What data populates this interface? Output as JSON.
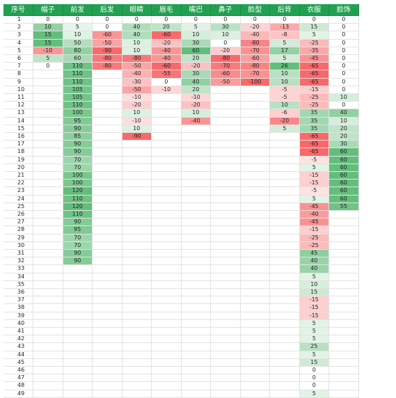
{
  "table": {
    "headers": [
      "序号",
      "帽子",
      "前发",
      "后发",
      "眼睛",
      "眉毛",
      "嘴巴",
      "鼻子",
      "脸型",
      "后背",
      "衣服",
      "脸饰"
    ],
    "positive_color": "#63be7b",
    "negative_color": "#f8696b",
    "rows": [
      [
        1,
        0,
        0,
        0,
        0,
        0,
        0,
        0,
        0,
        0,
        0,
        0
      ],
      [
        2,
        10,
        5,
        0,
        40,
        20,
        5,
        30,
        -20,
        -13,
        15,
        0
      ],
      [
        3,
        15,
        10,
        -60,
        40,
        -60,
        10,
        10,
        -40,
        -8,
        5,
        0
      ],
      [
        4,
        15,
        50,
        -50,
        10,
        -20,
        30,
        0,
        -80,
        5,
        -25,
        0
      ],
      [
        5,
        -10,
        80,
        -90,
        10,
        -40,
        60,
        -20,
        -70,
        17,
        -35,
        0
      ],
      [
        6,
        5,
        60,
        -80,
        -80,
        -40,
        20,
        -80,
        -60,
        5,
        -45,
        0
      ],
      [
        7,
        0,
        110,
        -80,
        -50,
        -60,
        -20,
        -70,
        -80,
        26,
        -65,
        0
      ],
      [
        8,
        null,
        110,
        null,
        -40,
        -55,
        30,
        -60,
        -70,
        10,
        -65,
        0
      ],
      [
        9,
        null,
        110,
        null,
        -30,
        0,
        40,
        -50,
        -100,
        10,
        -65,
        0
      ],
      [
        10,
        null,
        105,
        null,
        -50,
        -10,
        20,
        null,
        null,
        -5,
        -15,
        0
      ],
      [
        11,
        null,
        105,
        null,
        -10,
        null,
        -10,
        null,
        null,
        -5,
        -25,
        10
      ],
      [
        12,
        null,
        110,
        null,
        -20,
        null,
        -20,
        null,
        null,
        10,
        -25,
        0
      ],
      [
        13,
        null,
        100,
        null,
        10,
        null,
        10,
        null,
        null,
        -6,
        35,
        40
      ],
      [
        14,
        null,
        95,
        null,
        -10,
        null,
        -40,
        null,
        null,
        -20,
        35,
        10
      ],
      [
        15,
        null,
        90,
        null,
        10,
        null,
        null,
        null,
        null,
        5,
        35,
        20
      ],
      [
        16,
        null,
        85,
        null,
        -90,
        null,
        null,
        null,
        null,
        null,
        -65,
        20
      ],
      [
        17,
        null,
        90,
        null,
        null,
        null,
        null,
        null,
        null,
        null,
        -65,
        30
      ],
      [
        18,
        null,
        90,
        null,
        null,
        null,
        null,
        null,
        null,
        null,
        -65,
        60
      ],
      [
        19,
        null,
        70,
        null,
        null,
        null,
        null,
        null,
        null,
        null,
        -5,
        60
      ],
      [
        20,
        null,
        70,
        null,
        null,
        null,
        null,
        null,
        null,
        null,
        5,
        60
      ],
      [
        21,
        null,
        100,
        null,
        null,
        null,
        null,
        null,
        null,
        null,
        -15,
        60
      ],
      [
        22,
        null,
        100,
        null,
        null,
        null,
        null,
        null,
        null,
        null,
        -15,
        60
      ],
      [
        23,
        null,
        120,
        null,
        null,
        null,
        null,
        null,
        null,
        null,
        -5,
        60
      ],
      [
        24,
        null,
        110,
        null,
        null,
        null,
        null,
        null,
        null,
        null,
        5,
        60
      ],
      [
        25,
        null,
        120,
        null,
        null,
        null,
        null,
        null,
        null,
        null,
        -45,
        55
      ],
      [
        26,
        null,
        110,
        null,
        null,
        null,
        null,
        null,
        null,
        null,
        -40,
        null
      ],
      [
        27,
        null,
        90,
        null,
        null,
        null,
        null,
        null,
        null,
        null,
        -45,
        null
      ],
      [
        28,
        null,
        95,
        null,
        null,
        null,
        null,
        null,
        null,
        null,
        -15,
        null
      ],
      [
        29,
        null,
        70,
        null,
        null,
        null,
        null,
        null,
        null,
        null,
        -25,
        null
      ],
      [
        30,
        null,
        70,
        null,
        null,
        null,
        null,
        null,
        null,
        null,
        -25,
        null
      ],
      [
        31,
        null,
        90,
        null,
        null,
        null,
        null,
        null,
        null,
        null,
        45,
        null
      ],
      [
        32,
        null,
        90,
        null,
        null,
        null,
        null,
        null,
        null,
        null,
        40,
        null
      ],
      [
        33,
        null,
        null,
        null,
        null,
        null,
        null,
        null,
        null,
        null,
        40,
        null
      ],
      [
        34,
        null,
        null,
        null,
        null,
        null,
        null,
        null,
        null,
        null,
        5,
        null
      ],
      [
        35,
        null,
        null,
        null,
        null,
        null,
        null,
        null,
        null,
        null,
        10,
        null
      ],
      [
        36,
        null,
        null,
        null,
        null,
        null,
        null,
        null,
        null,
        null,
        15,
        null
      ],
      [
        37,
        null,
        null,
        null,
        null,
        null,
        null,
        null,
        null,
        null,
        -15,
        null
      ],
      [
        38,
        null,
        null,
        null,
        null,
        null,
        null,
        null,
        null,
        null,
        -15,
        null
      ],
      [
        39,
        null,
        null,
        null,
        null,
        null,
        null,
        null,
        null,
        null,
        -15,
        null
      ],
      [
        40,
        null,
        null,
        null,
        null,
        null,
        null,
        null,
        null,
        null,
        5,
        null
      ],
      [
        41,
        null,
        null,
        null,
        null,
        null,
        null,
        null,
        null,
        null,
        5,
        null
      ],
      [
        42,
        null,
        null,
        null,
        null,
        null,
        null,
        null,
        null,
        null,
        5,
        null
      ],
      [
        43,
        null,
        null,
        null,
        null,
        null,
        null,
        null,
        null,
        null,
        25,
        null
      ],
      [
        44,
        null,
        null,
        null,
        null,
        null,
        null,
        null,
        null,
        null,
        5,
        null
      ],
      [
        45,
        null,
        null,
        null,
        null,
        null,
        null,
        null,
        null,
        null,
        15,
        null
      ],
      [
        46,
        null,
        null,
        null,
        null,
        null,
        null,
        null,
        null,
        null,
        0,
        null
      ],
      [
        47,
        null,
        null,
        null,
        null,
        null,
        null,
        null,
        null,
        null,
        0,
        null
      ],
      [
        48,
        null,
        null,
        null,
        null,
        null,
        null,
        null,
        null,
        null,
        0,
        null
      ],
      [
        49,
        null,
        null,
        null,
        null,
        null,
        null,
        null,
        null,
        null,
        5,
        null
      ]
    ]
  }
}
